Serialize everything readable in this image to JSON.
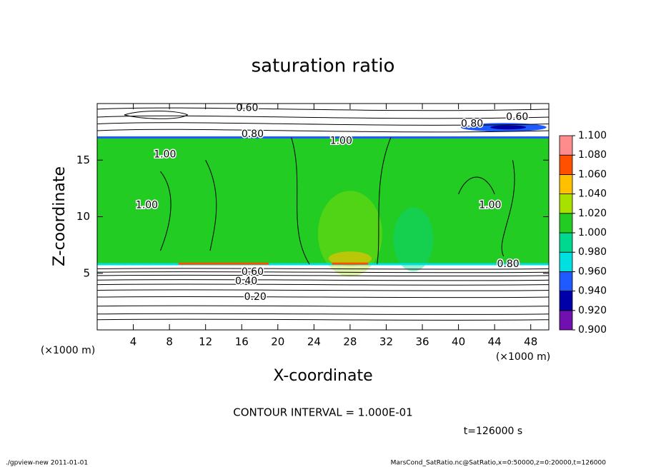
{
  "chart_data": {
    "type": "contour",
    "title": "saturation ratio",
    "x_label": "X-coordinate",
    "y_label": "Z-coordinate",
    "x_unit": "(×1000 m)",
    "y_unit": "(×1000 m)",
    "xlim": [
      0,
      50
    ],
    "xticks": [
      4,
      8,
      12,
      16,
      20,
      24,
      28,
      32,
      36,
      40,
      44,
      48
    ],
    "ylim": [
      0,
      20
    ],
    "yticks": [
      5,
      10,
      15
    ],
    "contour_interval_text": "CONTOUR INTERVAL = 1.000E-01",
    "time_label": "t=126000 s",
    "contour_labels": [
      "0.60",
      "0.80",
      "1.00",
      "0.80",
      "0.60",
      "1.00",
      "1.00",
      "1.00",
      "0.60",
      "0.40",
      "0.20",
      "0.80"
    ],
    "colorbar": {
      "levels": [
        {
          "value": 0.9,
          "label": "0.900"
        },
        {
          "value": 0.92,
          "label": "0.920"
        },
        {
          "value": 0.94,
          "label": "0.940"
        },
        {
          "value": 0.96,
          "label": "0.960"
        },
        {
          "value": 0.98,
          "label": "0.980"
        },
        {
          "value": 1.0,
          "label": "1.000"
        },
        {
          "value": 1.02,
          "label": "1.020"
        },
        {
          "value": 1.04,
          "label": "1.040"
        },
        {
          "value": 1.06,
          "label": "1.060"
        },
        {
          "value": 1.08,
          "label": "1.080"
        },
        {
          "value": 1.1,
          "label": "1.100"
        }
      ],
      "colors": [
        "#7010b0",
        "#0000a8",
        "#1e5aff",
        "#00e0e0",
        "#00d890",
        "#22cc22",
        "#a8e000",
        "#ffc000",
        "#ff5000",
        "#ff8c8c"
      ]
    },
    "footer_left": "./gpview-new  2011-01-01",
    "footer_right": "MarsCond_SatRatio.nc@SatRatio,x=0:50000,z=0:20000,t=126000"
  }
}
